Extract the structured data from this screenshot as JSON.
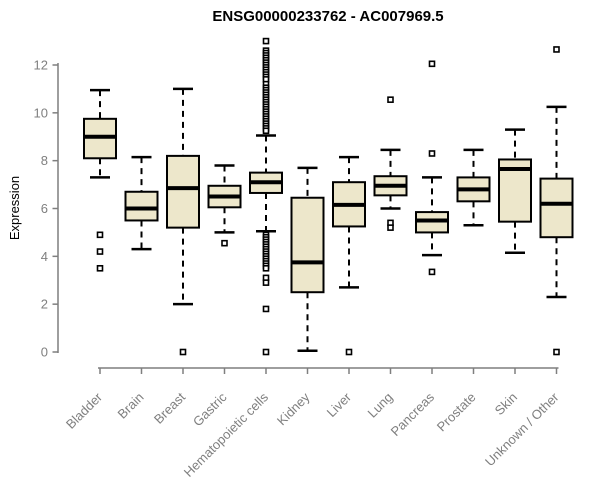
{
  "chart_data": {
    "type": "boxplot",
    "title": "ENSG00000233762 - AC007969.5",
    "ylabel": "Expression",
    "xlabel": "",
    "ylim": [
      0,
      12
    ],
    "yticks": [
      0,
      2,
      4,
      6,
      8,
      10,
      12
    ],
    "grid": "off",
    "legend": "none",
    "categories": [
      "Bladder",
      "Brain",
      "Breast",
      "Gastric",
      "Hematopoietic cells",
      "Kidney",
      "Liver",
      "Lung",
      "Pancreas",
      "Prostate",
      "Skin",
      "Unknown / Other"
    ],
    "series": [
      {
        "category": "Bladder",
        "whisker_low": 7.3,
        "q1": 8.1,
        "median": 9.0,
        "q3": 9.75,
        "whisker_high": 10.95,
        "outliers": [
          4.9,
          4.2,
          3.5
        ]
      },
      {
        "category": "Brain",
        "whisker_low": 4.3,
        "q1": 5.5,
        "median": 6.0,
        "q3": 6.7,
        "whisker_high": 8.15,
        "outliers": []
      },
      {
        "category": "Breast",
        "whisker_low": 2.0,
        "q1": 5.2,
        "median": 6.85,
        "q3": 8.2,
        "whisker_high": 11.0,
        "outliers": [
          0
        ]
      },
      {
        "category": "Gastric",
        "whisker_low": 5.0,
        "q1": 6.05,
        "median": 6.5,
        "q3": 6.95,
        "whisker_high": 7.8,
        "outliers": [
          4.55
        ]
      },
      {
        "category": "Hematopoietic cells",
        "whisker_low": 5.05,
        "q1": 6.65,
        "median": 7.1,
        "q3": 7.5,
        "whisker_high": 9.05,
        "outliers": [
          13.0,
          12.6,
          12.5,
          12.4,
          12.3,
          12.2,
          12.1,
          12.0,
          11.9,
          11.8,
          11.7,
          11.6,
          11.5,
          11.4,
          11.2,
          11.05,
          10.95,
          10.85,
          10.75,
          10.65,
          10.55,
          10.45,
          10.35,
          10.25,
          10.15,
          10.05,
          9.95,
          9.85,
          9.75,
          9.65,
          9.55,
          9.45,
          9.35,
          9.25,
          4.9,
          4.8,
          4.7,
          4.6,
          4.5,
          4.4,
          4.3,
          4.2,
          4.1,
          4.0,
          3.9,
          3.8,
          3.7,
          3.6,
          3.5,
          3.1,
          2.9,
          1.8,
          0
        ]
      },
      {
        "category": "Kidney",
        "whisker_low": 0.05,
        "q1": 2.5,
        "median": 3.75,
        "q3": 6.45,
        "whisker_high": 7.7,
        "outliers": []
      },
      {
        "category": "Liver",
        "whisker_low": 2.7,
        "q1": 5.25,
        "median": 6.15,
        "q3": 7.1,
        "whisker_high": 8.15,
        "outliers": [
          0
        ]
      },
      {
        "category": "Lung",
        "whisker_low": 6.0,
        "q1": 6.55,
        "median": 6.95,
        "q3": 7.35,
        "whisker_high": 8.45,
        "outliers": [
          10.55,
          5.4,
          5.2
        ]
      },
      {
        "category": "Pancreas",
        "whisker_low": 4.05,
        "q1": 5.0,
        "median": 5.5,
        "q3": 5.85,
        "whisker_high": 7.3,
        "outliers": [
          12.05,
          8.3,
          3.35
        ]
      },
      {
        "category": "Prostate",
        "whisker_low": 5.3,
        "q1": 6.3,
        "median": 6.8,
        "q3": 7.3,
        "whisker_high": 8.45,
        "outliers": []
      },
      {
        "category": "Skin",
        "whisker_low": 4.15,
        "q1": 5.45,
        "median": 7.65,
        "q3": 8.05,
        "whisker_high": 9.3,
        "outliers": []
      },
      {
        "category": "Unknown / Other",
        "whisker_low": 2.3,
        "q1": 4.8,
        "median": 6.2,
        "q3": 7.25,
        "whisker_high": 10.25,
        "outliers": [
          12.65,
          0
        ]
      }
    ],
    "colors": {
      "box_fill": "#EDE7CB",
      "box_border": "#000000",
      "median": "#000000",
      "whisker": "#000000",
      "outlier": "#000000",
      "axis": "#7F7F7F",
      "title": "#000000",
      "background": "#FFFFFF"
    }
  }
}
